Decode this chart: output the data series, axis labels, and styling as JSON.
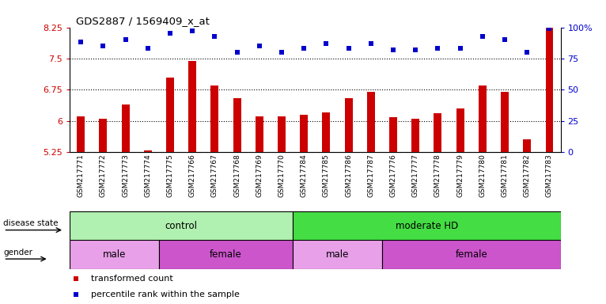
{
  "title": "GDS2887 / 1569409_x_at",
  "samples": [
    "GSM217771",
    "GSM217772",
    "GSM217773",
    "GSM217774",
    "GSM217775",
    "GSM217766",
    "GSM217767",
    "GSM217768",
    "GSM217769",
    "GSM217770",
    "GSM217784",
    "GSM217785",
    "GSM217786",
    "GSM217787",
    "GSM217776",
    "GSM217777",
    "GSM217778",
    "GSM217779",
    "GSM217780",
    "GSM217781",
    "GSM217782",
    "GSM217783"
  ],
  "bar_values": [
    6.1,
    6.05,
    6.4,
    5.28,
    7.05,
    7.45,
    6.85,
    6.55,
    6.1,
    6.1,
    6.15,
    6.2,
    6.55,
    6.7,
    6.08,
    6.05,
    6.18,
    6.3,
    6.85,
    6.7,
    5.55,
    8.25
  ],
  "dot_values": [
    88,
    85,
    90,
    83,
    95,
    97,
    93,
    80,
    85,
    80,
    83,
    87,
    83,
    87,
    82,
    82,
    83,
    83,
    93,
    90,
    80,
    99
  ],
  "ylim_left": [
    5.25,
    8.25
  ],
  "ylim_right": [
    0,
    100
  ],
  "yticks_left": [
    5.25,
    6.0,
    6.75,
    7.5,
    8.25
  ],
  "yticks_right": [
    0,
    25,
    50,
    75,
    100
  ],
  "ytick_labels_left": [
    "5.25",
    "6",
    "6.75",
    "7.5",
    "8.25"
  ],
  "ytick_labels_right": [
    "0",
    "25",
    "50",
    "75",
    "100%"
  ],
  "hlines": [
    6.0,
    6.75,
    7.5
  ],
  "bar_color": "#cc0000",
  "dot_color": "#0000cc",
  "background_color": "#ffffff",
  "xlabel_bg": "#cccccc",
  "disease_state_groups": [
    {
      "label": "control",
      "start": 0,
      "end": 10,
      "color": "#b0f0b0"
    },
    {
      "label": "moderate HD",
      "start": 10,
      "end": 22,
      "color": "#44dd44"
    }
  ],
  "gender_groups": [
    {
      "label": "male",
      "start": 0,
      "end": 4,
      "color": "#e8a0e8"
    },
    {
      "label": "female",
      "start": 4,
      "end": 10,
      "color": "#cc55cc"
    },
    {
      "label": "male",
      "start": 10,
      "end": 14,
      "color": "#e8a0e8"
    },
    {
      "label": "female",
      "start": 14,
      "end": 22,
      "color": "#cc55cc"
    }
  ],
  "legend_items": [
    {
      "label": "transformed count",
      "color": "#cc0000"
    },
    {
      "label": "percentile rank within the sample",
      "color": "#0000cc"
    }
  ],
  "disease_state_label": "disease state",
  "gender_label": "gender",
  "figsize": [
    7.66,
    3.84
  ],
  "dpi": 100
}
